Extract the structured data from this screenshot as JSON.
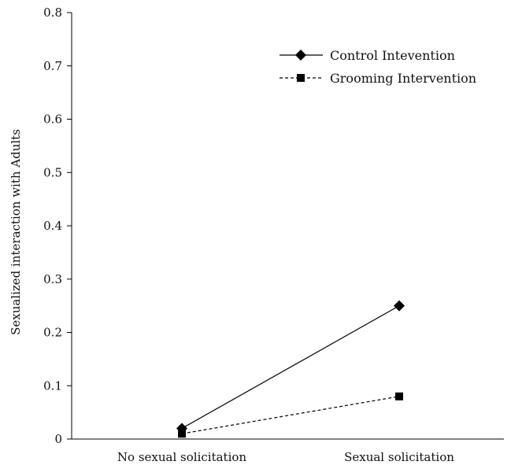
{
  "chart_data": {
    "type": "line",
    "categories": [
      "No sexual solicitation",
      "Sexual solicitation"
    ],
    "series": [
      {
        "name": "Control Intevention",
        "values": [
          0.02,
          0.25
        ],
        "marker": "diamond",
        "line_style": "solid"
      },
      {
        "name": "Grooming Intervention",
        "values": [
          0.01,
          0.08
        ],
        "marker": "square",
        "line_style": "dashed"
      }
    ],
    "title": "",
    "xlabel": "",
    "ylabel": "Sexualized interaction with Adults",
    "ylim": [
      0,
      0.8
    ],
    "yticks": [
      0,
      0.1,
      0.2,
      0.3,
      0.4,
      0.5,
      0.6,
      0.7,
      0.8
    ],
    "ytick_labels": [
      "0",
      "0.1",
      "0.2",
      "0.3",
      "0.4",
      "0.5",
      "0.6",
      "0.7",
      "0.8"
    ],
    "grid": false,
    "legend_position": "top-right",
    "colors": {
      "line": "#000000",
      "text": "#111111"
    }
  }
}
